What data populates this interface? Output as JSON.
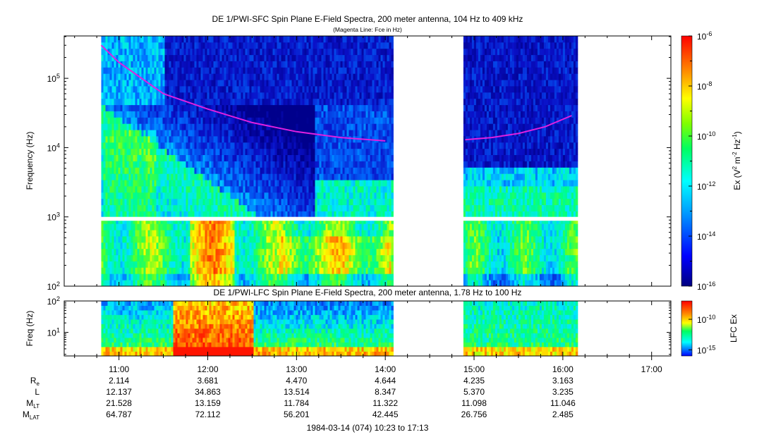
{
  "title_main": "DE 1/PWI-SFC  Spin Plane E-Field Spectra, 200 meter antenna, 104 Hz to 409 kHz",
  "subtitle_main": "(Magenta Line: Fce in Hz)",
  "title_lower": "DE 1/PWI-LFC  Spin Plane E-Field Spectra, 200 meter antenna, 1.78 Hz to 100 Hz",
  "footer": "1984-03-14 (074) 10:23 to 17:13",
  "colors": {
    "fce_line": "#e020e0",
    "background_spectrum": "#0a10b8"
  },
  "chart_data": [
    {
      "type": "heatmap",
      "name": "sfc",
      "title": "DE 1/PWI-SFC  Spin Plane E-Field Spectra, 200 meter antenna, 104 Hz to 409 kHz",
      "ylabel": "Frequency (Hz)",
      "yscale": "log",
      "ylim": [
        100,
        409000
      ],
      "y_ticks": [
        {
          "base": "10",
          "exp": "2",
          "value": 100
        },
        {
          "base": "10",
          "exp": "3",
          "value": 1000
        },
        {
          "base": "10",
          "exp": "4",
          "value": 10000
        },
        {
          "base": "10",
          "exp": "5",
          "value": 100000
        }
      ],
      "data_segments_hours": [
        [
          10.8,
          14.08
        ],
        [
          14.88,
          16.15
        ]
      ],
      "fce_line_hz": {
        "segment1": [
          [
            10.8,
            300000
          ],
          [
            11.0,
            170000
          ],
          [
            11.5,
            60000
          ],
          [
            12.0,
            36000
          ],
          [
            12.5,
            23000
          ],
          [
            13.0,
            17000
          ],
          [
            13.5,
            14000
          ],
          [
            14.0,
            12500
          ]
        ],
        "segment2": [
          [
            14.9,
            13000
          ],
          [
            15.2,
            14000
          ],
          [
            15.5,
            16000
          ],
          [
            15.8,
            20000
          ],
          [
            16.1,
            29000
          ]
        ]
      },
      "colorbar": {
        "label_base": "Ex (V",
        "label_sup1": "2",
        "label_mid": " m",
        "label_sup2": "-2",
        "label_mid2": " Hz",
        "label_sup3": "-1",
        "label_end": ")",
        "ticks": [
          {
            "base": "10",
            "exp": "-6",
            "value": -6
          },
          {
            "base": "10",
            "exp": "-8",
            "value": -8
          },
          {
            "base": "10",
            "exp": "-10",
            "value": -10
          },
          {
            "base": "10",
            "exp": "-12",
            "value": -12
          },
          {
            "base": "10",
            "exp": "-14",
            "value": -14
          },
          {
            "base": "10",
            "exp": "-16",
            "value": -16
          }
        ]
      }
    },
    {
      "type": "heatmap",
      "name": "lfc",
      "title": "DE 1/PWI-LFC  Spin Plane E-Field Spectra, 200 meter antenna, 1.78 Hz to 100 Hz",
      "ylabel": "Freq (Hz)",
      "yscale": "log",
      "ylim": [
        1.78,
        100
      ],
      "y_ticks": [
        {
          "base": "10",
          "exp": "1",
          "value": 10
        },
        {
          "base": "10",
          "exp": "2",
          "value": 100
        }
      ],
      "data_segments_hours": [
        [
          10.8,
          14.08
        ],
        [
          14.88,
          16.15
        ]
      ],
      "colorbar": {
        "label": "LFC Ex",
        "ticks": [
          {
            "base": "10",
            "exp": "-10",
            "value": -10
          },
          {
            "base": "10",
            "exp": "-15",
            "value": -15
          }
        ]
      }
    }
  ],
  "x_axis": {
    "range_hours": [
      10.383,
      17.217
    ],
    "ticks": [
      {
        "label": "11:00",
        "hour": 11
      },
      {
        "label": "12:00",
        "hour": 12
      },
      {
        "label": "13:00",
        "hour": 13
      },
      {
        "label": "14:00",
        "hour": 14
      },
      {
        "label": "15:00",
        "hour": 15
      },
      {
        "label": "16:00",
        "hour": 16
      },
      {
        "label": "17:00",
        "hour": 17
      }
    ]
  },
  "ephemeris": [
    {
      "label": "R",
      "sub": "e",
      "values": [
        "2.114",
        "3.681",
        "4.470",
        "4.644",
        "4.235",
        "3.163"
      ]
    },
    {
      "label": "L",
      "sub": "",
      "values": [
        "12.137",
        "34.863",
        "13.514",
        "8.347",
        "5.370",
        "3.235"
      ]
    },
    {
      "label": "M",
      "sub": "LT",
      "values": [
        "21.528",
        "13.159",
        "11.784",
        "11.322",
        "11.098",
        "11.046"
      ]
    },
    {
      "label": "M",
      "sub": "LAT",
      "values": [
        "64.787",
        "72.112",
        "56.201",
        "42.445",
        "26.756",
        "2.485"
      ]
    }
  ]
}
